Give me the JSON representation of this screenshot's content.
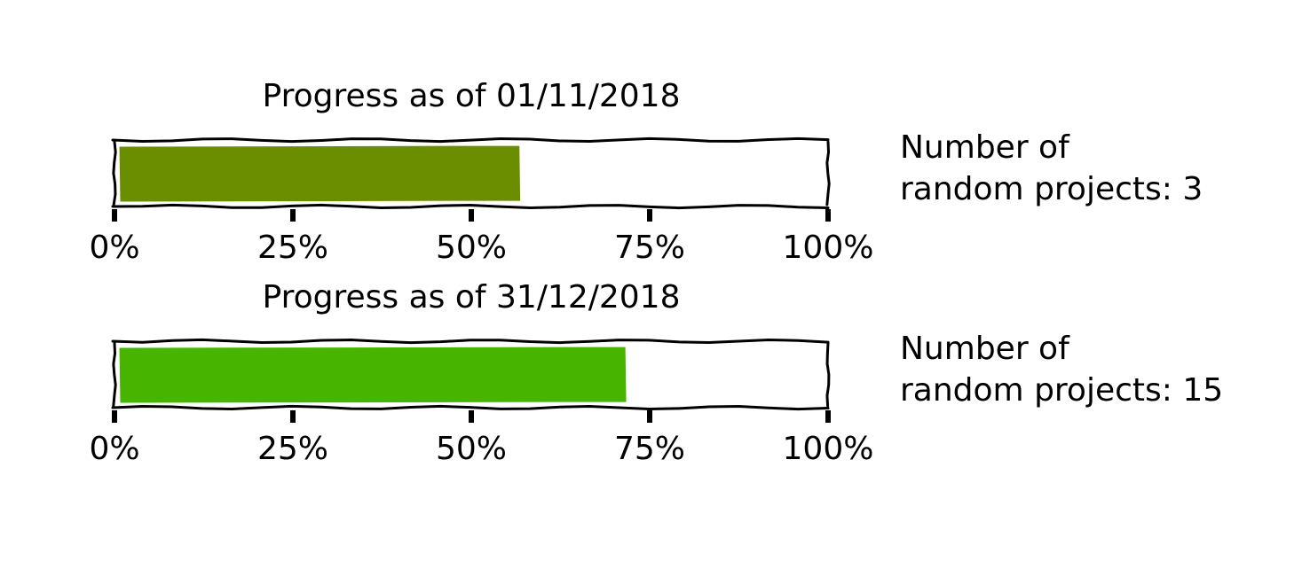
{
  "chart_data": [
    {
      "type": "bar",
      "title": "Progress as of 01/11/2018",
      "value": 0.57,
      "xlim": [
        0,
        1
      ],
      "ticks": [
        "0%",
        "25%",
        "50%",
        "75%",
        "100%"
      ],
      "tick_values": [
        0,
        0.25,
        0.5,
        0.75,
        1
      ],
      "fill_color": "#6b8e00",
      "side_label_line1": "Number of",
      "side_label_line2": "random projects: 3"
    },
    {
      "type": "bar",
      "title": "Progress as of 31/12/2018",
      "value": 0.72,
      "xlim": [
        0,
        1
      ],
      "ticks": [
        "0%",
        "25%",
        "50%",
        "75%",
        "100%"
      ],
      "tick_values": [
        0,
        0.25,
        0.5,
        0.75,
        1
      ],
      "fill_color": "#47b500",
      "side_label_line1": "Number of",
      "side_label_line2": "random projects: 15"
    }
  ]
}
